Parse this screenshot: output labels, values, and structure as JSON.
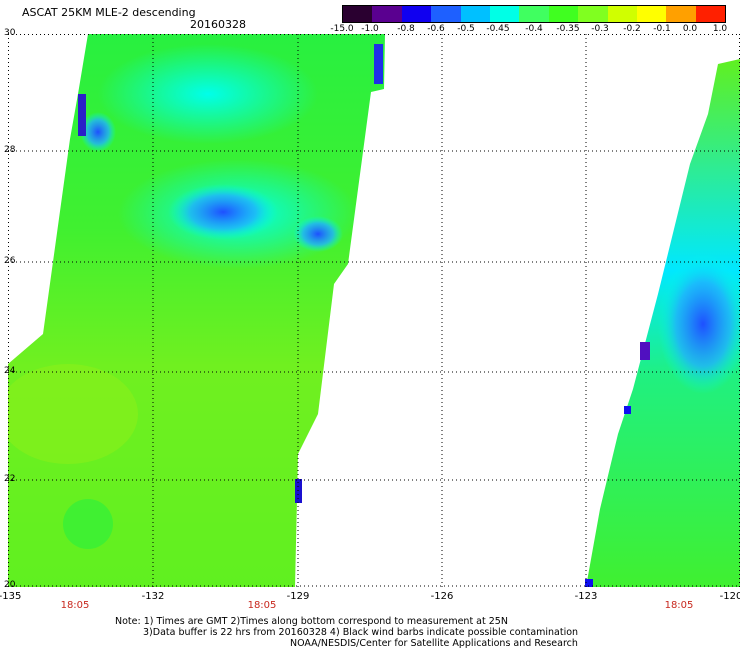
{
  "header": {
    "title": "ASCAT 25KM MLE-2 descending",
    "date": "20160328"
  },
  "colorbar": {
    "labels": [
      "-15.0",
      "-1.0",
      "-0.8",
      "-0.6",
      "-0.5",
      "-0.45",
      "-0.4",
      "-0.35",
      "-0.3",
      "-0.2",
      "-0.1",
      "0.0",
      "1.0"
    ],
    "colors": [
      "#2a0030",
      "#5a0090",
      "#1000f0",
      "#1e60ff",
      "#00c0ff",
      "#00ffe6",
      "#40ff60",
      "#40ff20",
      "#80ff20",
      "#d0ff00",
      "#ffff00",
      "#ffa000",
      "#ff2000"
    ]
  },
  "map": {
    "lat_labels": [
      "30",
      "28",
      "26",
      "24",
      "22",
      "20"
    ],
    "lon_labels": [
      "-135",
      "-132",
      "-129",
      "-126",
      "-123",
      "-120"
    ],
    "time_labels": [
      "18:05",
      "18:05",
      "18:05"
    ]
  },
  "notes": {
    "line1": "Note: 1) Times are GMT 2)Times along bottom correspond to measurement at 25N",
    "line2": "3)Data buffer is 22 hrs from 20160328 4) Black wind barbs indicate possible contamination",
    "line3": "NOAA/NESDIS/Center for Satellite Applications and Research"
  }
}
